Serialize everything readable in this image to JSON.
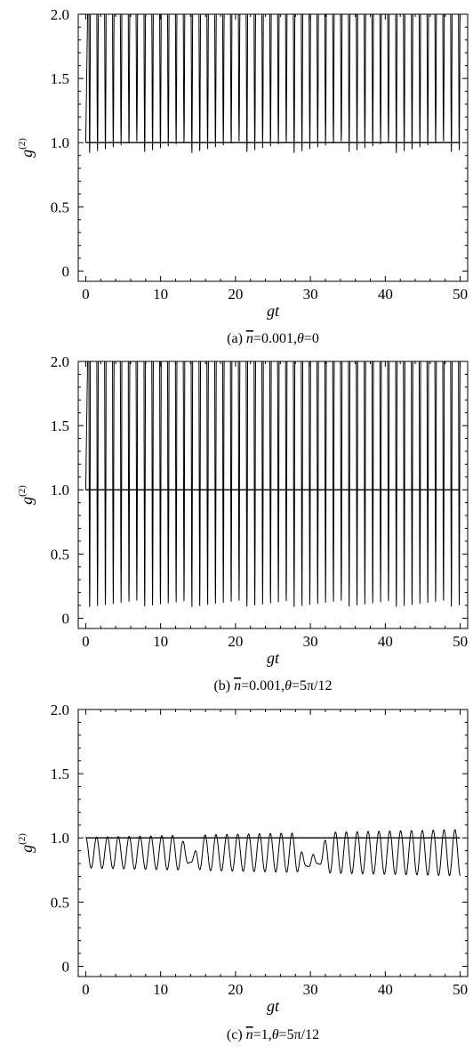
{
  "chart_data": [
    {
      "type": "line",
      "panel_label": "(a)",
      "caption": {
        "prefix": "(a) ",
        "nbar": "n",
        "nbar_value": "=0.001,",
        "theta": "θ",
        "theta_value": "=0"
      },
      "xlabel": "gt",
      "ylabel": {
        "base": "g",
        "superscript": "(2)"
      },
      "xlim": [
        -1,
        51
      ],
      "ylim": [
        -0.08,
        2.0
      ],
      "xticks": [
        0,
        10,
        20,
        30,
        40,
        50
      ],
      "yticks": [
        0,
        0.5,
        1.0,
        1.5,
        2.0
      ],
      "ytick_labels": [
        "0",
        "0.5",
        "1.0",
        "1.5",
        "2.0"
      ],
      "reference_line": {
        "y": 1.0,
        "x": [
          0,
          50
        ]
      },
      "series": [
        {
          "description_level": "oscillating, clipped at top",
          "model": "spikes",
          "x_start": 0,
          "x_end": 50,
          "minima": [
            0.91,
            1.0
          ],
          "peak": 2.0,
          "period_approx": 1.05
        }
      ]
    },
    {
      "type": "line",
      "panel_label": "(b)",
      "caption": {
        "prefix": "(b) ",
        "nbar": "n",
        "nbar_value": "=0.001,",
        "theta": "θ",
        "theta_value": "=5π/12"
      },
      "xlabel": "gt",
      "ylabel": {
        "base": "g",
        "superscript": "(2)"
      },
      "xlim": [
        -1,
        51
      ],
      "ylim": [
        -0.08,
        2.0
      ],
      "xticks": [
        0,
        10,
        20,
        30,
        40,
        50
      ],
      "yticks": [
        0,
        0.5,
        1.0,
        1.5,
        2.0
      ],
      "ytick_labels": [
        "0",
        "0.5",
        "1.0",
        "1.5",
        "2.0"
      ],
      "reference_line": {
        "y": 1.0,
        "x": [
          0,
          50
        ]
      },
      "series": [
        {
          "model": "spikes",
          "x_start": 0,
          "x_end": 50,
          "minima": [
            0.07,
            0.12
          ],
          "peak": 2.0,
          "period_approx": 1.05
        }
      ]
    },
    {
      "type": "line",
      "panel_label": "(c)",
      "caption": {
        "prefix": "(c) ",
        "nbar": "n",
        "nbar_value": "=1,",
        "theta": "θ",
        "theta_value": "=5π/12"
      },
      "xlabel": "gt",
      "ylabel": {
        "base": "g",
        "superscript": "(2)"
      },
      "xlim": [
        -1,
        51
      ],
      "ylim": [
        -0.08,
        2.0
      ],
      "xticks": [
        0,
        10,
        20,
        30,
        40,
        50
      ],
      "yticks": [
        0,
        0.5,
        1.0,
        1.5,
        2.0
      ],
      "ytick_labels": [
        "0",
        "0.5",
        "1.0",
        "1.5",
        "2.0"
      ],
      "reference_line": {
        "y": 1.0,
        "x": [
          0,
          50
        ]
      },
      "series": [
        {
          "model": "sine",
          "x_start": 0,
          "x_end": 50,
          "center": 0.885,
          "amplitude": 0.12,
          "amplitude_growth": 0.0012,
          "period_approx": 1.45,
          "dips": [
            [
              14,
              0.81
            ],
            [
              29.5,
              0.78
            ],
            [
              31,
              0.8
            ]
          ]
        }
      ]
    }
  ]
}
